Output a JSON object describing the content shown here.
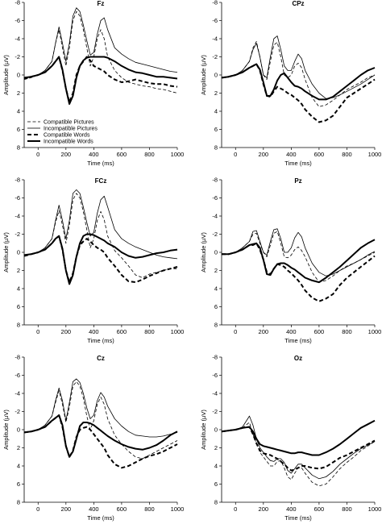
{
  "chart_data": {
    "type": "line",
    "xlabel": "Time (ms)",
    "ylabel": "Amplitude (µV)",
    "xlim": [
      -100,
      1000
    ],
    "ylim": [
      8,
      -8
    ],
    "y_inverted": true,
    "x_ticks": [
      0,
      200,
      400,
      600,
      800,
      1000
    ],
    "x_tick_labels": [
      "0",
      "200",
      "400",
      "600",
      "800",
      "1000"
    ],
    "y_ticks": [
      -8,
      -6,
      -4,
      -2,
      0,
      2,
      4,
      6,
      8
    ],
    "y_tick_labels": [
      "-8",
      "-6",
      "-4",
      "-2",
      "0",
      "2",
      "4",
      "6",
      "8"
    ],
    "grid": false,
    "legend_position": "bottom-left of Fz panel",
    "legend": [
      {
        "key": "cp",
        "name": "Compatible Pictures",
        "style": "thin-dashed"
      },
      {
        "key": "ip",
        "name": "Incompatible Pictures",
        "style": "thin-solid"
      },
      {
        "key": "cw",
        "name": "Compatible Words",
        "style": "thick-dashed"
      },
      {
        "key": "iw",
        "name": "Incompatible Words",
        "style": "thick-solid"
      }
    ],
    "x": [
      -100,
      -50,
      0,
      50,
      100,
      125,
      150,
      175,
      200,
      225,
      250,
      275,
      300,
      325,
      350,
      375,
      400,
      425,
      450,
      475,
      500,
      550,
      600,
      650,
      700,
      750,
      800,
      850,
      900,
      950,
      1000
    ],
    "panels": [
      {
        "title": "Fz",
        "series": {
          "cp": [
            0.5,
            0.3,
            0,
            -0.5,
            -1.5,
            -3.5,
            -5,
            -3,
            -1,
            -3,
            -6,
            -7,
            -6.5,
            -5,
            -3,
            -1,
            -2,
            -4,
            -5,
            -4,
            -2,
            -0.5,
            0.3,
            0.8,
            1,
            1.2,
            1.3,
            1.5,
            1.6,
            1.8,
            2
          ],
          "ip": [
            0.3,
            0.2,
            0,
            -0.5,
            -1.5,
            -3.5,
            -5.3,
            -3.5,
            -1.5,
            -3.5,
            -6.5,
            -7.4,
            -7,
            -5.5,
            -3.8,
            -2.2,
            -2.5,
            -4.5,
            -6,
            -6.3,
            -5,
            -3,
            -2.3,
            -1.8,
            -1.4,
            -1.2,
            -1,
            -0.8,
            -0.6,
            -0.4,
            -0.3
          ],
          "cw": [
            0.4,
            0.2,
            0,
            -0.3,
            -1,
            -1.5,
            -2,
            -0.5,
            1.5,
            3,
            2,
            0,
            -1,
            -1.5,
            -2,
            -1.6,
            -1,
            -0.8,
            -0.6,
            -0.4,
            0,
            0.5,
            0.8,
            0.7,
            0.5,
            0.7,
            0.9,
            1,
            1,
            1.2,
            1.3
          ],
          "iw": [
            0.3,
            0.2,
            0,
            -0.3,
            -1,
            -1.5,
            -2,
            -0.6,
            1.5,
            3.2,
            2.3,
            0.3,
            -1,
            -1.6,
            -1.9,
            -2,
            -2,
            -2,
            -2,
            -2,
            -1.9,
            -1.5,
            -1,
            -0.6,
            -0.3,
            -0.2,
            0,
            0.2,
            0.2,
            0.3,
            0.4
          ]
        }
      },
      {
        "title": "CPz",
        "series": {
          "cp": [
            0.3,
            0.2,
            0,
            -0.5,
            -1.5,
            -3,
            -3.7,
            -2,
            0,
            0.5,
            -1.5,
            -3.3,
            -3.6,
            -2,
            0,
            0.3,
            0,
            -1,
            -1.3,
            -0.8,
            0.5,
            2.5,
            3.5,
            3.3,
            2.8,
            2.2,
            1.6,
            1.2,
            0.8,
            0.3,
            0
          ],
          "ip": [
            0.3,
            0.2,
            0,
            -0.5,
            -1.5,
            -2.8,
            -3.5,
            -2,
            0,
            0.3,
            -2,
            -4,
            -4.3,
            -2.8,
            -1,
            -0.5,
            -0.5,
            -1.5,
            -2.3,
            -1.8,
            -0.5,
            1,
            2,
            2.6,
            2.5,
            2.2,
            1.8,
            1.4,
            1,
            0.5,
            0
          ],
          "cw": [
            0.3,
            0.2,
            0,
            -0.3,
            -0.8,
            -1,
            -1.2,
            -0.5,
            1,
            2.3,
            2.4,
            1.8,
            1.3,
            1.5,
            1.7,
            2,
            2.2,
            2.5,
            2.8,
            3.2,
            3.8,
            4.6,
            5.2,
            5,
            4.5,
            3.5,
            2.5,
            2,
            1.5,
            1,
            0.5
          ],
          "iw": [
            0.3,
            0.2,
            0,
            -0.3,
            -0.8,
            -1,
            -1.2,
            -0.6,
            0.8,
            2.3,
            2.3,
            1.6,
            0.6,
            0,
            -0.2,
            0.3,
            0.8,
            1.2,
            1.3,
            1.5,
            1.8,
            2.3,
            2.7,
            2.7,
            2.4,
            1.8,
            1.2,
            0.6,
            0,
            -0.5,
            -0.8
          ]
        }
      },
      {
        "title": "FCz",
        "series": {
          "cp": [
            0.4,
            0.2,
            0,
            -0.5,
            -1.5,
            -3.3,
            -4.6,
            -3,
            -1,
            -3,
            -5.8,
            -6.5,
            -6,
            -4.5,
            -2.5,
            -0.5,
            -1.5,
            -3.5,
            -4.5,
            -3.6,
            -1.8,
            -0.2,
            0.6,
            1.5,
            2.5,
            2.8,
            2.4,
            2.2,
            2,
            1.8,
            1.8
          ],
          "ip": [
            0.3,
            0.2,
            0,
            -0.5,
            -1.5,
            -3.5,
            -5.2,
            -3.5,
            -1.5,
            -3.5,
            -6.5,
            -6.9,
            -6.5,
            -5,
            -3.3,
            -1.8,
            -2.2,
            -4.3,
            -5.8,
            -6.2,
            -5,
            -2.5,
            -1.5,
            -1,
            -0.6,
            -0.3,
            0,
            0.3,
            0.5,
            0.6,
            0.7
          ],
          "cw": [
            0.4,
            0.2,
            0,
            -0.3,
            -1,
            -1.5,
            -1.8,
            -0.3,
            2,
            3.3,
            2.3,
            0.5,
            -0.8,
            -1.2,
            -1.5,
            -1.2,
            -0.8,
            -0.5,
            -0.3,
            0,
            0.6,
            1.5,
            2.5,
            3.2,
            3.3,
            3,
            2.6,
            2.3,
            2,
            1.8,
            1.6
          ],
          "iw": [
            0.3,
            0.2,
            0,
            -0.3,
            -1,
            -1.5,
            -1.8,
            -0.4,
            2,
            3.5,
            2.5,
            0.5,
            -1,
            -1.8,
            -2,
            -2,
            -1.9,
            -1.7,
            -1.5,
            -1.3,
            -1,
            -0.6,
            0,
            0.4,
            0.6,
            0.5,
            0.3,
            0.1,
            0,
            -0.2,
            -0.3
          ]
        }
      },
      {
        "title": "Pz",
        "series": {
          "cp": [
            0.2,
            0.2,
            0,
            -0.5,
            -1.2,
            -2,
            -2.1,
            -1,
            0,
            0.5,
            -0.8,
            -2.1,
            -2.3,
            -1,
            0.5,
            0.6,
            0.3,
            -0.3,
            -0.6,
            -0.2,
            0.5,
            2.2,
            3.3,
            3.1,
            2.6,
            2,
            1.5,
            1.2,
            0.8,
            0.4,
            0
          ],
          "ip": [
            0.2,
            0.2,
            0,
            -0.5,
            -1.2,
            -2.3,
            -2.4,
            -1.2,
            0,
            0.3,
            -1.2,
            -2.5,
            -2.6,
            -1.5,
            0,
            0,
            -0.5,
            -1.6,
            -2.2,
            -1.7,
            -0.5,
            1.2,
            2.2,
            2.6,
            2.4,
            2,
            1.6,
            1.2,
            0.8,
            0.3,
            -0.1
          ],
          "cw": [
            0.2,
            0.2,
            0,
            -0.3,
            -0.8,
            -0.8,
            -1,
            -0.3,
            0.8,
            2.2,
            2.4,
            1.8,
            1.3,
            1.4,
            1.6,
            2,
            2.3,
            2.7,
            3.1,
            3.6,
            4.2,
            5,
            5.4,
            5.1,
            4.6,
            3.6,
            2.8,
            2.2,
            1.6,
            1,
            0.4
          ],
          "iw": [
            0.2,
            0.2,
            0,
            -0.3,
            -0.8,
            -0.9,
            -1,
            -0.5,
            0.8,
            2.4,
            2.5,
            1.8,
            1.3,
            1.2,
            1.2,
            1.4,
            1.7,
            1.9,
            2.2,
            2.5,
            2.8,
            3.1,
            3.3,
            2.8,
            2.2,
            1.6,
            0.9,
            0.2,
            -0.5,
            -1,
            -1.4
          ]
        }
      },
      {
        "title": "Cz",
        "series": {
          "cp": [
            0.3,
            0.2,
            0,
            -0.5,
            -1.5,
            -3,
            -4.3,
            -2.8,
            -0.8,
            -2.5,
            -4.8,
            -5.3,
            -4.8,
            -3.5,
            -1.5,
            0,
            -1,
            -2.8,
            -3.6,
            -2.8,
            -1.2,
            0.6,
            1.6,
            2.4,
            3,
            3.2,
            2.8,
            2.4,
            2,
            1.6,
            1.2
          ],
          "ip": [
            0.3,
            0.2,
            0,
            -0.5,
            -1.5,
            -3.2,
            -4.6,
            -3.2,
            -1,
            -3,
            -5.3,
            -5.6,
            -5.2,
            -4,
            -2.4,
            -1.2,
            -1.6,
            -3.2,
            -4.1,
            -3.6,
            -2.6,
            -1.2,
            -0.4,
            0.2,
            0.6,
            0.7,
            0.8,
            0.8,
            0.7,
            0.5,
            0.3
          ],
          "cw": [
            0.3,
            0.2,
            0,
            -0.3,
            -1,
            -1.3,
            -1.6,
            -0.3,
            1.8,
            3,
            2.3,
            0.8,
            0,
            -0.2,
            -0.3,
            0,
            0.5,
            1,
            1.5,
            2,
            2.8,
            3.8,
            4.2,
            4,
            3.6,
            3.2,
            2.9,
            2.7,
            2.4,
            2,
            1.6
          ],
          "iw": [
            0.3,
            0.2,
            0,
            -0.3,
            -1,
            -1.3,
            -1.6,
            -0.5,
            1.8,
            3,
            2.4,
            1,
            -0.4,
            -0.8,
            -0.8,
            -0.7,
            -0.5,
            -0.2,
            0.1,
            0.4,
            0.7,
            1.2,
            1.6,
            1.9,
            2.1,
            2.2,
            2,
            1.7,
            1.2,
            0.6,
            0.2
          ]
        }
      },
      {
        "title": "Oz",
        "series": {
          "cp": [
            0.2,
            0.1,
            0,
            -0.2,
            -0.8,
            0.5,
            1.5,
            2.5,
            3,
            3.5,
            4,
            4,
            3.5,
            3.4,
            4.2,
            5.2,
            5.5,
            4.8,
            4.2,
            4.2,
            4.8,
            5.8,
            6.2,
            6,
            5.2,
            4.3,
            3.6,
            3,
            2.3,
            1.8,
            1.3
          ],
          "ip": [
            0.2,
            0.1,
            0,
            -0.3,
            -1.5,
            -0.5,
            1,
            2,
            2.5,
            3,
            3.4,
            3.5,
            3.2,
            3.2,
            3.6,
            4.5,
            4.8,
            4.3,
            3.8,
            3.8,
            4.2,
            5,
            5.4,
            5.2,
            4.6,
            3.8,
            3.2,
            2.6,
            2.1,
            1.7,
            1.3
          ],
          "cw": [
            0.2,
            0.1,
            0,
            -0.2,
            -0.3,
            0.5,
            1.5,
            2.3,
            2.6,
            2.7,
            2.8,
            3,
            3.2,
            3.5,
            3.8,
            4.2,
            4.5,
            4.4,
            4.2,
            4,
            4,
            4.2,
            4.3,
            4.1,
            3.6,
            3.1,
            2.8,
            2.4,
            2,
            1.6,
            1.2
          ],
          "iw": [
            0.2,
            0.1,
            0,
            -0.2,
            -0.3,
            0.2,
            1,
            1.6,
            1.8,
            1.9,
            2,
            2.1,
            2.2,
            2.3,
            2.4,
            2.5,
            2.6,
            2.6,
            2.5,
            2.5,
            2.6,
            2.8,
            2.8,
            2.5,
            2.1,
            1.6,
            1,
            0.4,
            -0.2,
            -0.6,
            -1
          ]
        }
      }
    ]
  }
}
